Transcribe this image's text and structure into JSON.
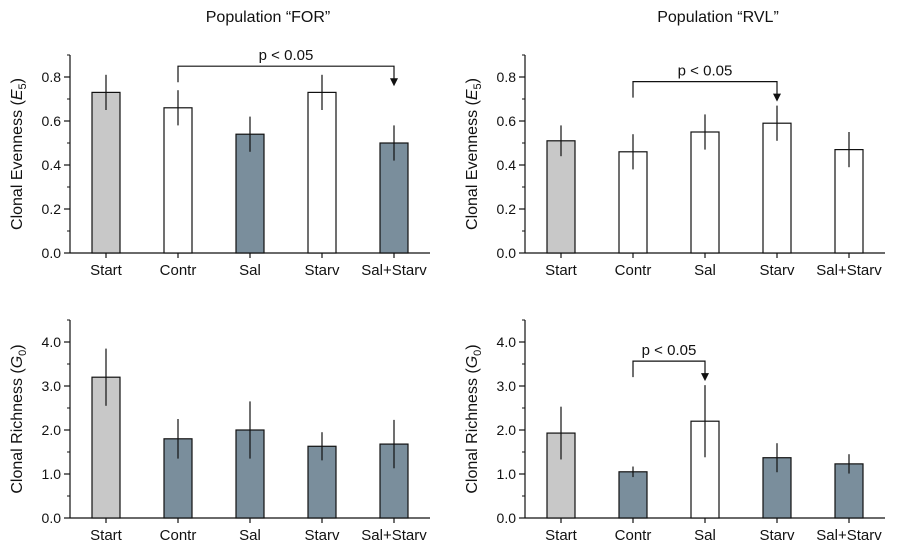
{
  "figure": {
    "col_titles": [
      "Population “FOR”",
      "Population “RVL”"
    ]
  },
  "colors": {
    "start": "#c8c8c8",
    "treatment": "#7a8e9c",
    "open": "#ffffff",
    "stroke": "#111111"
  },
  "chart_data": [
    {
      "type": "bar",
      "panel": "top-left",
      "title": "Population “FOR”",
      "ylabel_prefix": "Clonal Evenness (",
      "ylabel_symbol": "E",
      "ylabel_sub": "5",
      "ylabel_suffix": ")",
      "ylim": [
        0,
        0.9
      ],
      "yticks": [
        0.0,
        0.2,
        0.4,
        0.6,
        0.8
      ],
      "ytick_labels": [
        "0.0",
        "0.2",
        "0.4",
        "0.6",
        "0.8"
      ],
      "categories": [
        "Start",
        "Contr",
        "Sal",
        "Starv",
        "Sal+Starv"
      ],
      "values": [
        0.73,
        0.66,
        0.54,
        0.73,
        0.5
      ],
      "errors": [
        0.08,
        0.08,
        0.08,
        0.08,
        0.08
      ],
      "fills": [
        "start",
        "open",
        "treatment",
        "open",
        "treatment"
      ],
      "annotation": {
        "text": "p < 0.05",
        "from": 1,
        "to": 4
      }
    },
    {
      "type": "bar",
      "panel": "top-right",
      "title": "Population “RVL”",
      "ylabel_prefix": "Clonal Evenness (",
      "ylabel_symbol": "E",
      "ylabel_sub": "5",
      "ylabel_suffix": ")",
      "ylim": [
        0,
        0.9
      ],
      "yticks": [
        0.0,
        0.2,
        0.4,
        0.6,
        0.8
      ],
      "ytick_labels": [
        "0.0",
        "0.2",
        "0.4",
        "0.6",
        "0.8"
      ],
      "categories": [
        "Start",
        "Contr",
        "Sal",
        "Starv",
        "Sal+Starv"
      ],
      "values": [
        0.51,
        0.46,
        0.55,
        0.59,
        0.47
      ],
      "errors": [
        0.07,
        0.08,
        0.08,
        0.08,
        0.08
      ],
      "fills": [
        "start",
        "open",
        "open",
        "open",
        "open"
      ],
      "annotation": {
        "text": "p < 0.05",
        "from": 1,
        "to": 3
      }
    },
    {
      "type": "bar",
      "panel": "bottom-left",
      "title": "",
      "ylabel_prefix": "Clonal Richness (",
      "ylabel_symbol": "G",
      "ylabel_sub": "0",
      "ylabel_suffix": ")",
      "ylim": [
        0,
        4.5
      ],
      "yticks": [
        0.0,
        1.0,
        2.0,
        3.0,
        4.0
      ],
      "ytick_labels": [
        "0.0",
        "1.0",
        "2.0",
        "3.0",
        "4.0"
      ],
      "categories": [
        "Start",
        "Contr",
        "Sal",
        "Starv",
        "Sal+Starv"
      ],
      "values": [
        3.2,
        1.8,
        2.0,
        1.63,
        1.68
      ],
      "errors": [
        0.65,
        0.45,
        0.65,
        0.32,
        0.55
      ],
      "fills": [
        "start",
        "treatment",
        "treatment",
        "treatment",
        "treatment"
      ],
      "annotation": null
    },
    {
      "type": "bar",
      "panel": "bottom-right",
      "title": "",
      "ylabel_prefix": "Clonal Richness (",
      "ylabel_symbol": "G",
      "ylabel_sub": "0",
      "ylabel_suffix": ")",
      "ylim": [
        0,
        4.5
      ],
      "yticks": [
        0.0,
        1.0,
        2.0,
        3.0,
        4.0
      ],
      "ytick_labels": [
        "0.0",
        "1.0",
        "2.0",
        "3.0",
        "4.0"
      ],
      "categories": [
        "Start",
        "Contr",
        "Sal",
        "Starv",
        "Sal+Starv"
      ],
      "values": [
        1.93,
        1.05,
        2.2,
        1.37,
        1.23
      ],
      "errors": [
        0.6,
        0.12,
        0.82,
        0.33,
        0.22
      ],
      "fills": [
        "start",
        "treatment",
        "open",
        "treatment",
        "treatment"
      ],
      "annotation": {
        "text": "p < 0.05",
        "from": 1,
        "to": 2
      }
    }
  ]
}
